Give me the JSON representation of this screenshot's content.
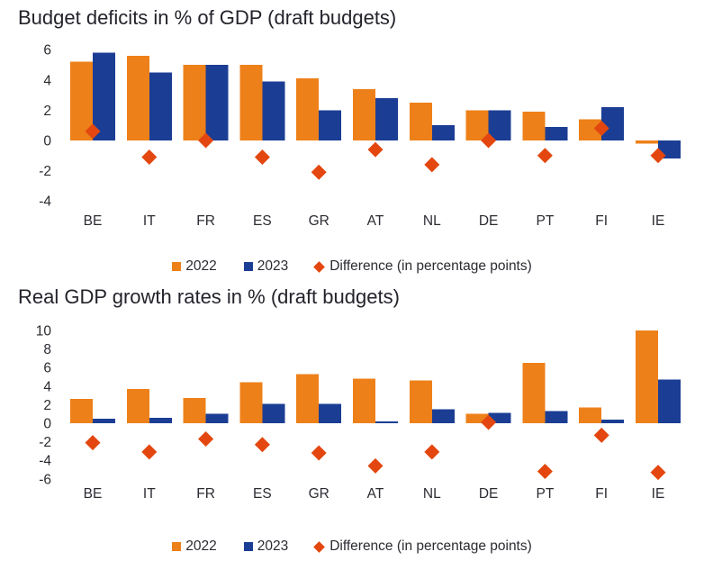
{
  "chart_data": [
    {
      "type": "bar",
      "title": "Budget deficits in % of GDP (draft budgets)",
      "categories": [
        "BE",
        "IT",
        "FR",
        "ES",
        "GR",
        "AT",
        "NL",
        "DE",
        "PT",
        "FI",
        "IE"
      ],
      "series": [
        {
          "name": "2022",
          "marker": "bar",
          "color": "#EE8019",
          "values": [
            5.2,
            5.6,
            5.0,
            5.0,
            4.1,
            3.4,
            2.5,
            2.0,
            1.9,
            1.4,
            -0.2
          ]
        },
        {
          "name": "2023",
          "marker": "bar",
          "color": "#1B3E94",
          "values": [
            5.8,
            4.5,
            5.0,
            3.9,
            2.0,
            2.8,
            1.0,
            2.0,
            0.9,
            2.2,
            -1.2
          ]
        },
        {
          "name": "Difference (in percentage points)",
          "marker": "diamond",
          "color": "#E3470F",
          "values": [
            0.6,
            -1.1,
            0.0,
            -1.1,
            -2.1,
            -0.6,
            -1.6,
            0.0,
            -1.0,
            0.8,
            -1.0
          ]
        }
      ],
      "ylim": [
        -4,
        6
      ],
      "yticks": [
        6,
        4,
        2,
        0,
        -2,
        -4
      ],
      "grid": false,
      "legend_position": "bottom"
    },
    {
      "type": "bar",
      "title": "Real GDP growth rates in % (draft budgets)",
      "categories": [
        "BE",
        "IT",
        "FR",
        "ES",
        "GR",
        "AT",
        "NL",
        "DE",
        "PT",
        "FI",
        "IE"
      ],
      "series": [
        {
          "name": "2022",
          "marker": "bar",
          "color": "#EE8019",
          "values": [
            2.6,
            3.7,
            2.7,
            4.4,
            5.3,
            4.8,
            4.6,
            1.0,
            6.5,
            1.7,
            10.0
          ]
        },
        {
          "name": "2023",
          "marker": "bar",
          "color": "#1B3E94",
          "values": [
            0.5,
            0.6,
            1.0,
            2.1,
            2.1,
            0.2,
            1.5,
            1.1,
            1.3,
            0.4,
            4.7
          ]
        },
        {
          "name": "Difference (in percentage points)",
          "marker": "diamond",
          "color": "#E3470F",
          "values": [
            -2.1,
            -3.1,
            -1.7,
            -2.3,
            -3.2,
            -4.6,
            -3.1,
            0.1,
            -5.2,
            -1.3,
            -5.3
          ]
        }
      ],
      "ylim": [
        -6,
        10
      ],
      "yticks": [
        10,
        8,
        6,
        4,
        2,
        0,
        -2,
        -4,
        -6
      ],
      "grid": false,
      "legend_position": "bottom"
    }
  ],
  "colors": {
    "bar_2022": "#EE8019",
    "bar_2023": "#1B3E94",
    "difference_marker": "#E3470F",
    "text": "#2b2b32",
    "title": "#23232b",
    "background": "#ffffff"
  }
}
